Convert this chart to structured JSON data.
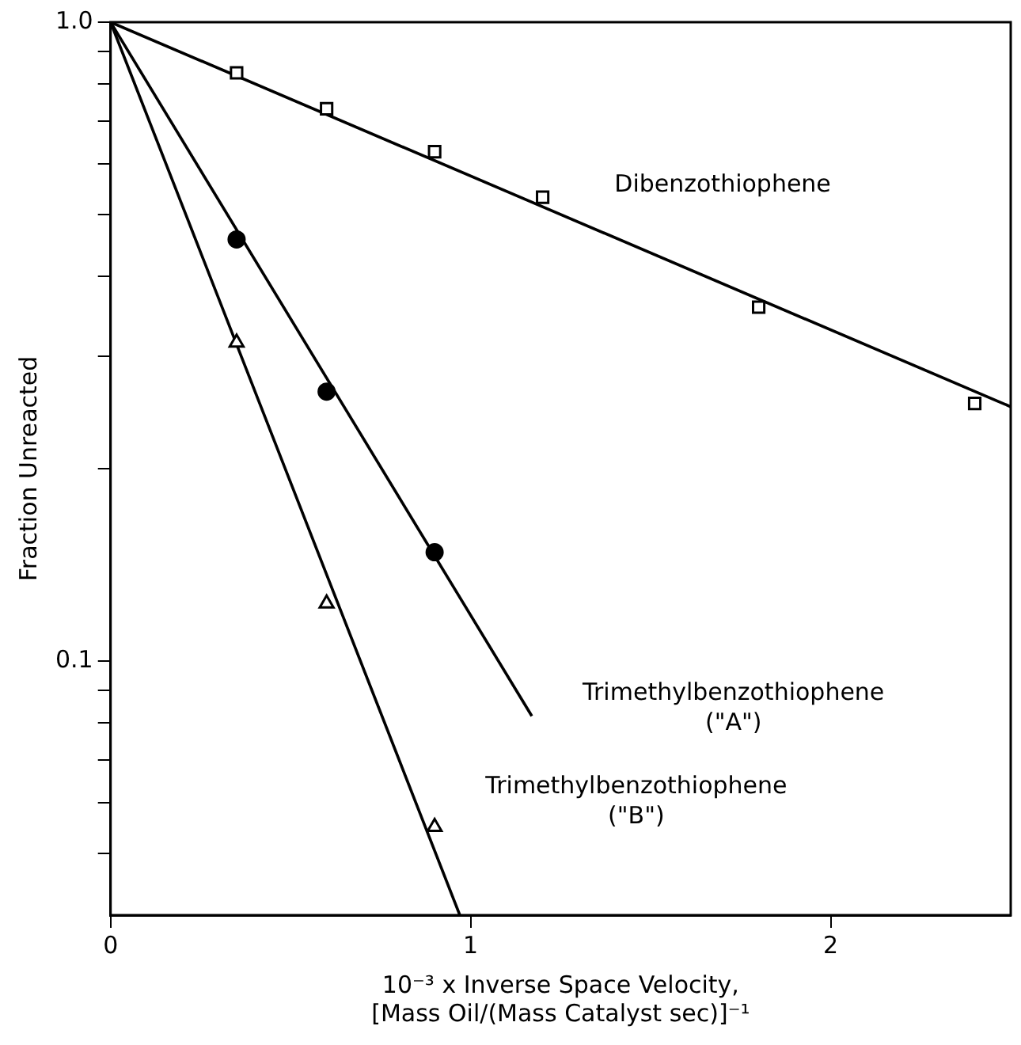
{
  "chart_data": {
    "type": "scatter",
    "xlabel": "10⁻³ x Inverse Space Velocity,\n[Mass Oil/(Mass Catalyst sec)]⁻¹",
    "ylabel": "Fraction Unreacted",
    "log": "y",
    "grid": false,
    "legend": false,
    "xlim": [
      0,
      2.5
    ],
    "xticks": [
      0,
      1,
      2
    ],
    "ylim": [
      0.04,
      1
    ],
    "yticks": [
      {
        "value": 0.05,
        "label": null
      },
      {
        "value": 0.06,
        "label": null
      },
      {
        "value": 0.07,
        "label": null
      },
      {
        "value": 0.08,
        "label": null
      },
      {
        "value": 0.09,
        "label": null
      },
      {
        "value": 0.1,
        "label": "0.1"
      },
      {
        "value": 0.2,
        "label": null
      },
      {
        "value": 0.3,
        "label": null
      },
      {
        "value": 0.4,
        "label": null
      },
      {
        "value": 0.5,
        "label": null
      },
      {
        "value": 0.6,
        "label": null
      },
      {
        "value": 0.7,
        "label": null
      },
      {
        "value": 0.8,
        "label": null
      },
      {
        "value": 0.9,
        "label": null
      },
      {
        "value": 1,
        "label": "1.0"
      }
    ],
    "series": [
      {
        "marker": "square",
        "color": "#000000",
        "x": [
          0.35,
          0.6,
          0.9,
          1.2,
          1.8,
          2.4
        ],
        "values": [
          0.833,
          0.732,
          0.627,
          0.532,
          0.358,
          0.253
        ]
      },
      {
        "marker": "circle",
        "color": "#000000",
        "x": [
          0.35,
          0.6,
          0.9
        ],
        "values": [
          0.457,
          0.264,
          0.148
        ]
      },
      {
        "marker": "triangle",
        "color": "#000000",
        "x": [
          0.35,
          0.6,
          0.9
        ],
        "values": [
          0.315,
          0.123,
          0.055
        ]
      },
      {
        "type": "line",
        "marker": "none",
        "color": "#000000",
        "x": [
          0,
          2.5
        ],
        "values": [
          1,
          0.25
        ]
      },
      {
        "type": "line",
        "marker": "none",
        "color": "#000000",
        "x": [
          0,
          1.17
        ],
        "values": [
          1,
          0.082
        ]
      },
      {
        "type": "line",
        "marker": "none",
        "color": "#000000",
        "x": [
          0,
          0.97
        ],
        "values": [
          1,
          0.04
        ]
      }
    ],
    "annotations": [
      "Dibenzothiophene",
      "Trimethylbenzothiophene\n(\"A\")",
      "Trimethylbenzothiophene\n(\"B\")"
    ]
  }
}
